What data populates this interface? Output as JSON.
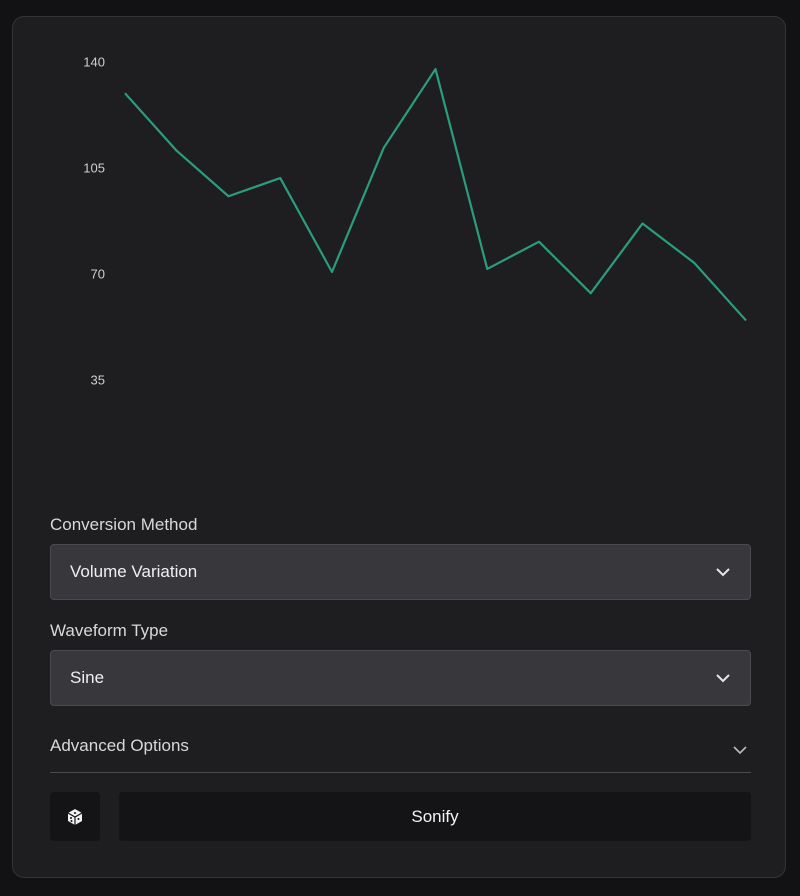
{
  "chart_data": {
    "type": "line",
    "categories": [
      null,
      null,
      null,
      null,
      null,
      null,
      null,
      null,
      null,
      null,
      null,
      null,
      null
    ],
    "values": [
      130,
      111,
      96,
      102,
      71,
      112,
      138,
      72,
      81,
      64,
      87,
      74,
      55
    ],
    "color": "#2a9d7c",
    "ylim": [
      0,
      140
    ],
    "yticks": [
      35,
      70,
      105,
      140
    ],
    "grid": false
  },
  "form": {
    "conversion_label": "Conversion Method",
    "conversion_value": "Volume Variation",
    "waveform_label": "Waveform Type",
    "waveform_value": "Sine",
    "advanced": "Advanced Options",
    "submit": "Sonify"
  }
}
